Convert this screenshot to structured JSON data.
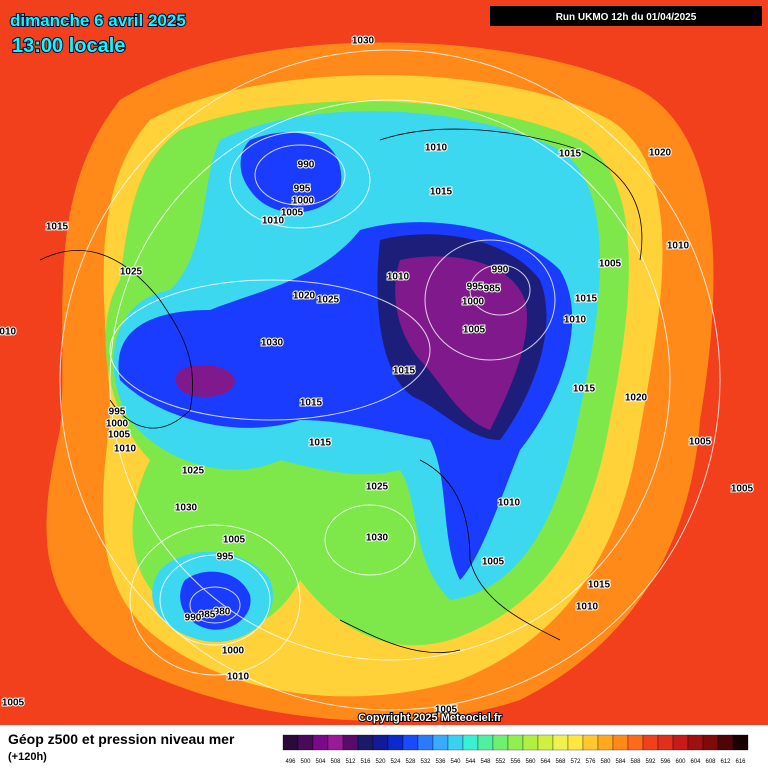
{
  "header": {
    "date": "dimanche 6 avril 2025",
    "time": "13:00 locale",
    "run": "Run UKMO 12h du 01/04/2025"
  },
  "map": {
    "isobars": [
      1030,
      990,
      995,
      1000,
      1005,
      1010,
      1010,
      1015,
      1015,
      1020,
      1015,
      1025,
      1010,
      1005,
      990,
      995,
      985,
      1000,
      1010,
      1015,
      1010,
      1020,
      1025,
      1030,
      1005,
      1015,
      1015,
      1020,
      1015,
      1015,
      1005,
      1005,
      1025,
      1025,
      1030,
      1010,
      1030,
      1005,
      995,
      1005,
      1015,
      1010,
      980,
      985,
      990,
      1000,
      1010,
      1005,
      1005,
      1010,
      995,
      1000,
      1005,
      1010
    ],
    "copyright": "Copyright 2025 Meteociel.fr"
  },
  "footer": {
    "title": "Géop z500 et pression niveau mer",
    "subtitle": "(+120h)"
  },
  "legend": {
    "labels": [
      496,
      500,
      504,
      508,
      512,
      516,
      520,
      524,
      528,
      532,
      536,
      540,
      544,
      548,
      552,
      556,
      560,
      564,
      568,
      572,
      576,
      580,
      584,
      588,
      592,
      596,
      600,
      604,
      608,
      612,
      616
    ]
  }
}
